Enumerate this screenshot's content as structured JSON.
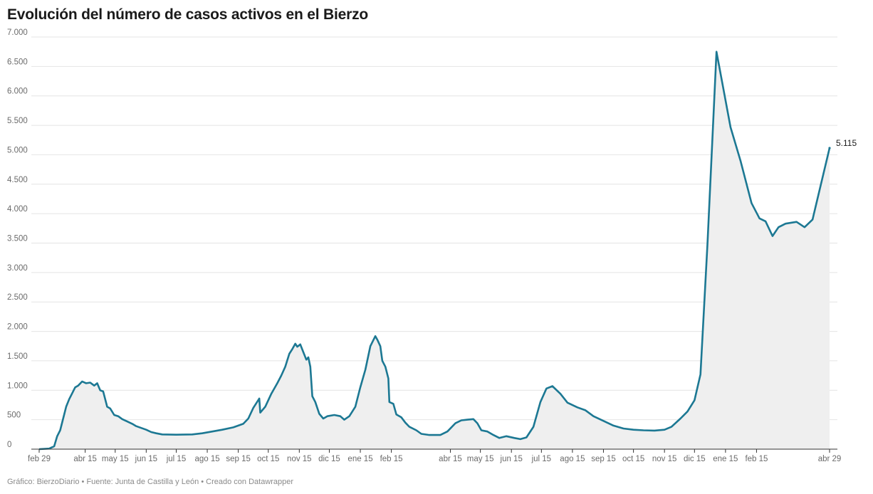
{
  "title": "Evolución del número de casos activos en el Bierzo",
  "footer": "Gráfico: BierzoDiario • Fuente: Junta de Castilla y León • Creado con Datawrapper",
  "colors": {
    "line": "#1c7893",
    "area": "#efefef",
    "grid": "#e4e4e4",
    "axis": "#333333"
  },
  "chart_data": {
    "type": "area",
    "title": "Evolución del número de casos activos en el Bierzo",
    "xlabel": "",
    "ylabel": "",
    "ylim": [
      0,
      7000
    ],
    "grid": "horizontal",
    "y_ticks": [
      0,
      500,
      1000,
      1500,
      2000,
      2500,
      3000,
      3500,
      4000,
      4500,
      5000,
      5500,
      6000,
      6500,
      7000
    ],
    "y_tick_labels": [
      "0",
      "500",
      "1.000",
      "1.500",
      "2.000",
      "2.500",
      "3.000",
      "3.500",
      "4.000",
      "4.500",
      "5.000",
      "5.500",
      "6.000",
      "6.500",
      "7.000"
    ],
    "x_ticks": [
      {
        "date": "2020-02-29",
        "label": "feb 29"
      },
      {
        "date": "2020-04-15",
        "label": "abr 15"
      },
      {
        "date": "2020-05-15",
        "label": "may 15"
      },
      {
        "date": "2020-06-15",
        "label": "jun 15"
      },
      {
        "date": "2020-07-15",
        "label": "jul 15"
      },
      {
        "date": "2020-08-15",
        "label": "ago 15"
      },
      {
        "date": "2020-09-15",
        "label": "sep 15"
      },
      {
        "date": "2020-10-15",
        "label": "oct 15"
      },
      {
        "date": "2020-11-15",
        "label": "nov 15"
      },
      {
        "date": "2020-12-15",
        "label": "dic 15"
      },
      {
        "date": "2021-01-15",
        "label": "ene 15"
      },
      {
        "date": "2021-02-15",
        "label": "feb 15"
      },
      {
        "date": "2021-04-15",
        "label": "abr 15"
      },
      {
        "date": "2021-05-15",
        "label": "may 15"
      },
      {
        "date": "2021-06-15",
        "label": "jun 15"
      },
      {
        "date": "2021-07-15",
        "label": "jul 15"
      },
      {
        "date": "2021-08-15",
        "label": "ago 15"
      },
      {
        "date": "2021-09-15",
        "label": "sep 15"
      },
      {
        "date": "2021-10-15",
        "label": "oct 15"
      },
      {
        "date": "2021-11-15",
        "label": "nov 15"
      },
      {
        "date": "2021-12-15",
        "label": "dic 15"
      },
      {
        "date": "2022-01-15",
        "label": "ene 15"
      },
      {
        "date": "2022-02-15",
        "label": "feb 15"
      },
      {
        "date": "2022-04-29",
        "label": "abr 29"
      }
    ],
    "end_label": "5.115",
    "series": [
      {
        "points": [
          [
            "2020-02-29",
            0
          ],
          [
            "2020-03-10",
            10
          ],
          [
            "2020-03-15",
            50
          ],
          [
            "2020-03-18",
            220
          ],
          [
            "2020-03-21",
            320
          ],
          [
            "2020-03-24",
            520
          ],
          [
            "2020-03-27",
            720
          ],
          [
            "2020-03-30",
            850
          ],
          [
            "2020-04-02",
            950
          ],
          [
            "2020-04-05",
            1050
          ],
          [
            "2020-04-08",
            1080
          ],
          [
            "2020-04-12",
            1150
          ],
          [
            "2020-04-16",
            1120
          ],
          [
            "2020-04-20",
            1130
          ],
          [
            "2020-04-24",
            1080
          ],
          [
            "2020-04-27",
            1120
          ],
          [
            "2020-04-30",
            1000
          ],
          [
            "2020-05-03",
            980
          ],
          [
            "2020-05-07",
            720
          ],
          [
            "2020-05-10",
            690
          ],
          [
            "2020-05-14",
            580
          ],
          [
            "2020-05-18",
            560
          ],
          [
            "2020-05-22",
            510
          ],
          [
            "2020-05-27",
            470
          ],
          [
            "2020-06-01",
            430
          ],
          [
            "2020-06-05",
            390
          ],
          [
            "2020-06-10",
            360
          ],
          [
            "2020-06-15",
            330
          ],
          [
            "2020-06-20",
            290
          ],
          [
            "2020-06-25",
            270
          ],
          [
            "2020-07-01",
            250
          ],
          [
            "2020-07-15",
            245
          ],
          [
            "2020-07-31",
            250
          ],
          [
            "2020-08-10",
            270
          ],
          [
            "2020-08-20",
            300
          ],
          [
            "2020-08-30",
            330
          ],
          [
            "2020-09-10",
            370
          ],
          [
            "2020-09-20",
            430
          ],
          [
            "2020-09-25",
            520
          ],
          [
            "2020-09-30",
            700
          ],
          [
            "2020-10-06",
            860
          ],
          [
            "2020-10-07",
            620
          ],
          [
            "2020-10-12",
            720
          ],
          [
            "2020-10-18",
            940
          ],
          [
            "2020-10-24",
            1120
          ],
          [
            "2020-10-28",
            1250
          ],
          [
            "2020-11-01",
            1400
          ],
          [
            "2020-11-05",
            1620
          ],
          [
            "2020-11-08",
            1700
          ],
          [
            "2020-11-11",
            1790
          ],
          [
            "2020-11-13",
            1740
          ],
          [
            "2020-11-16",
            1780
          ],
          [
            "2020-11-19",
            1650
          ],
          [
            "2020-11-22",
            1520
          ],
          [
            "2020-11-24",
            1560
          ],
          [
            "2020-11-26",
            1400
          ],
          [
            "2020-11-28",
            900
          ],
          [
            "2020-12-01",
            800
          ],
          [
            "2020-12-05",
            600
          ],
          [
            "2020-12-09",
            520
          ],
          [
            "2020-12-13",
            560
          ],
          [
            "2020-12-20",
            580
          ],
          [
            "2020-12-26",
            560
          ],
          [
            "2020-12-30",
            500
          ],
          [
            "2021-01-04",
            560
          ],
          [
            "2021-01-10",
            720
          ],
          [
            "2021-01-15",
            1050
          ],
          [
            "2021-01-20",
            1350
          ],
          [
            "2021-01-25",
            1750
          ],
          [
            "2021-01-30",
            1920
          ],
          [
            "2021-02-01",
            1860
          ],
          [
            "2021-02-04",
            1750
          ],
          [
            "2021-02-06",
            1500
          ],
          [
            "2021-02-09",
            1400
          ],
          [
            "2021-02-12",
            1200
          ],
          [
            "2021-02-13",
            800
          ],
          [
            "2021-02-17",
            770
          ],
          [
            "2021-02-20",
            590
          ],
          [
            "2021-02-25",
            540
          ],
          [
            "2021-03-01",
            450
          ],
          [
            "2021-03-05",
            380
          ],
          [
            "2021-03-12",
            320
          ],
          [
            "2021-03-17",
            260
          ],
          [
            "2021-03-25",
            240
          ],
          [
            "2021-04-05",
            240
          ],
          [
            "2021-04-12",
            300
          ],
          [
            "2021-04-20",
            440
          ],
          [
            "2021-04-26",
            490
          ],
          [
            "2021-05-02",
            500
          ],
          [
            "2021-05-08",
            510
          ],
          [
            "2021-05-12",
            440
          ],
          [
            "2021-05-16",
            320
          ],
          [
            "2021-05-22",
            300
          ],
          [
            "2021-05-28",
            240
          ],
          [
            "2021-06-03",
            190
          ],
          [
            "2021-06-10",
            220
          ],
          [
            "2021-06-18",
            190
          ],
          [
            "2021-06-24",
            170
          ],
          [
            "2021-06-30",
            200
          ],
          [
            "2021-07-07",
            380
          ],
          [
            "2021-07-14",
            800
          ],
          [
            "2021-07-20",
            1030
          ],
          [
            "2021-07-26",
            1070
          ],
          [
            "2021-08-03",
            940
          ],
          [
            "2021-08-10",
            790
          ],
          [
            "2021-08-20",
            710
          ],
          [
            "2021-08-28",
            660
          ],
          [
            "2021-09-05",
            560
          ],
          [
            "2021-09-15",
            480
          ],
          [
            "2021-09-25",
            400
          ],
          [
            "2021-10-05",
            350
          ],
          [
            "2021-10-15",
            330
          ],
          [
            "2021-10-25",
            320
          ],
          [
            "2021-11-05",
            315
          ],
          [
            "2021-11-15",
            330
          ],
          [
            "2021-11-22",
            380
          ],
          [
            "2021-12-01",
            520
          ],
          [
            "2021-12-08",
            640
          ],
          [
            "2021-12-15",
            830
          ],
          [
            "2021-12-21",
            1270
          ],
          [
            "2021-12-28",
            3500
          ],
          [
            "2022-01-06",
            6750
          ],
          [
            "2022-01-20",
            5470
          ],
          [
            "2022-01-30",
            4900
          ],
          [
            "2022-02-10",
            4180
          ],
          [
            "2022-02-18",
            3920
          ],
          [
            "2022-02-24",
            3870
          ],
          [
            "2022-03-03",
            3620
          ],
          [
            "2022-03-09",
            3770
          ],
          [
            "2022-03-16",
            3830
          ],
          [
            "2022-03-27",
            3860
          ],
          [
            "2022-04-04",
            3770
          ],
          [
            "2022-04-12",
            3900
          ],
          [
            "2022-04-29",
            5115
          ]
        ]
      }
    ]
  }
}
